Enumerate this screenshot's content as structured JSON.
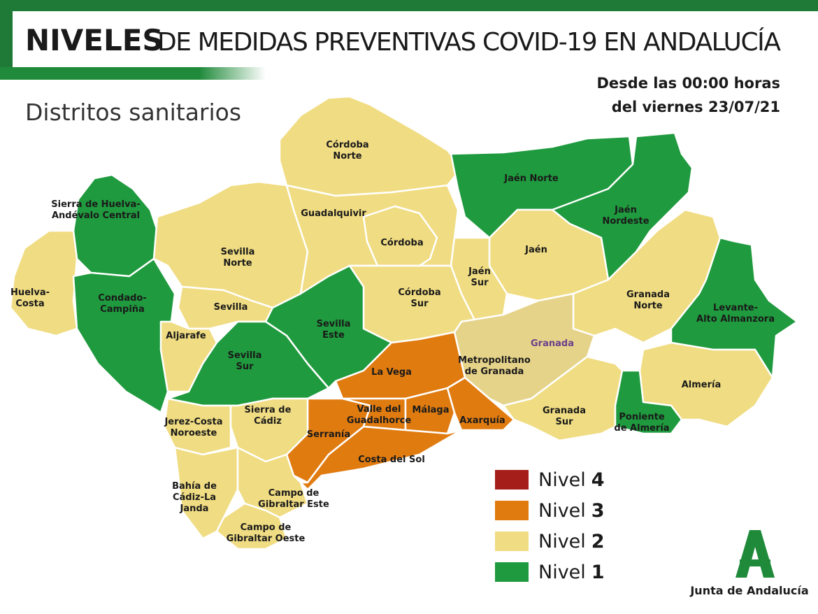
{
  "header": {
    "title_bold": "NIVELES",
    "title": "DE MEDIDAS PREVENTIVAS COVID-19 EN ANDALUCÍA",
    "subtitle": "Distritos sanitarios",
    "date": [
      "Desde las 00:00 horas",
      "del viernes 23/07/21"
    ]
  },
  "districts": [
    {
      "name": [
        "Córdoba",
        "Norte"
      ],
      "color": "#f0dc82"
    },
    {
      "name": [
        "Jaén Norte"
      ],
      "color": "#1f9a3e"
    },
    {
      "name": [
        "Jaén",
        "Nordeste"
      ],
      "color": "#1f9a3e"
    },
    {
      "name": [
        "Sierra de Huelva-",
        "Andévalo Central"
      ],
      "color": "#1f9a3e"
    },
    {
      "name": [
        "Huelva-",
        "Costa"
      ],
      "color": "#f0dc82"
    },
    {
      "name": [
        "Condado-",
        "Campiña"
      ],
      "color": "#1f9a3e"
    },
    {
      "name": [
        "Sevilla",
        "Norte"
      ],
      "color": "#f0dc82"
    },
    {
      "name": [
        "Guadalquivir"
      ],
      "color": "#f0dc82"
    },
    {
      "name": [
        "Córdoba"
      ],
      "color": "#f0dc82"
    },
    {
      "name": [
        "Jaén"
      ],
      "color": "#f0dc82"
    },
    {
      "name": [
        "Jaén",
        "Sur"
      ],
      "color": "#f0dc82"
    },
    {
      "name": [
        "Córdoba",
        "Sur"
      ],
      "color": "#f0dc82"
    },
    {
      "name": [
        "Sevilla"
      ],
      "color": "#f0dc82"
    },
    {
      "name": [
        "Aljarafe"
      ],
      "color": "#f0dc82"
    },
    {
      "name": [
        "Sevilla",
        "Este"
      ],
      "color": "#1f9a3e"
    },
    {
      "name": [
        "Sevilla",
        "Sur"
      ],
      "color": "#1f9a3e"
    },
    {
      "name": [
        "Granada",
        "Norte"
      ],
      "color": "#f0dc82"
    },
    {
      "name": [
        "Levante-",
        "Alto Almanzora"
      ],
      "color": "#1f9a3e"
    },
    {
      "name": [
        "Almería"
      ],
      "color": "#f0dc82"
    },
    {
      "name": [
        "Metropolitano",
        "de Granada"
      ],
      "color": "#e6d38a"
    },
    {
      "name": [
        "Granada",
        "Sur"
      ],
      "color": "#f0dc82"
    },
    {
      "name": [
        "Poniente",
        "de Almería"
      ],
      "color": "#1f9a3e"
    },
    {
      "name": [
        "La Vega"
      ],
      "color": "#e07b10"
    },
    {
      "name": [
        "Serranía"
      ],
      "color": "#e07b10"
    },
    {
      "name": [
        "Valle del",
        "Guadalhorce"
      ],
      "color": "#e07b10"
    },
    {
      "name": [
        "Málaga"
      ],
      "color": "#e07b10"
    },
    {
      "name": [
        "Axarquía"
      ],
      "color": "#e07b10"
    },
    {
      "name": [
        "Costa del Sol"
      ],
      "color": "#e07b10"
    },
    {
      "name": [
        "Jerez-Costa",
        "Noroeste"
      ],
      "color": "#f0dc82"
    },
    {
      "name": [
        "Sierra de",
        "Cádiz"
      ],
      "color": "#f0dc82"
    },
    {
      "name": [
        "Bahía de",
        "Cádiz-La",
        "Janda"
      ],
      "color": "#f0dc82"
    },
    {
      "name": [
        "Campo de",
        "Gibraltar Este"
      ],
      "color": "#f0dc82"
    },
    {
      "name": [
        "Campo de",
        "Gibraltar Oeste"
      ],
      "color": "#f0dc82"
    }
  ],
  "city": {
    "name": "Granada",
    "color": "#6b3f8a"
  },
  "legend": [
    {
      "label": "Nivel",
      "level": "4",
      "color": "#a51e1a"
    },
    {
      "label": "Nivel",
      "level": "3",
      "color": "#e07b10"
    },
    {
      "label": "Nivel",
      "level": "2",
      "color": "#f0dc82"
    },
    {
      "label": "Nivel",
      "level": "1",
      "color": "#1f9a3e"
    }
  ],
  "footer": {
    "logo_text": "Junta de Andalucía"
  }
}
